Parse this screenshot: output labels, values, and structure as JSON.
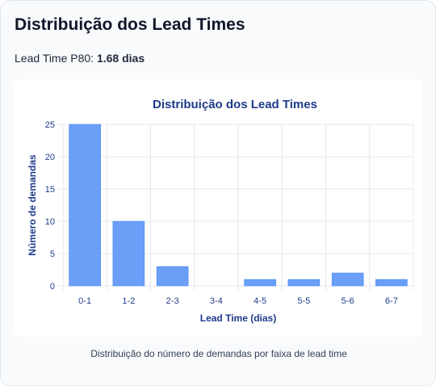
{
  "header": {
    "title": "Distribuição dos Lead Times",
    "metric_label": "Lead Time P80:",
    "metric_value": "1.68 dias"
  },
  "chart_data": {
    "type": "bar",
    "title": "Distribuição dos Lead Times",
    "xlabel": "Lead Time (dias)",
    "ylabel": "Número de demandas",
    "categories": [
      "0-1",
      "1-2",
      "2-3",
      "3-4",
      "4-5",
      "5-5",
      "5-6",
      "6-7"
    ],
    "values": [
      25,
      10,
      3,
      0,
      1,
      1,
      2,
      1
    ],
    "ylim": [
      0,
      25
    ],
    "yticks": [
      0,
      5,
      10,
      15,
      20,
      25
    ],
    "grid": true,
    "legend": "none",
    "colors": {
      "bar_fill": "#6a9ef7",
      "bar_stroke": "#3b82f6",
      "text": "#1e3a8a",
      "grid": "#e5e7eb"
    }
  },
  "caption": "Distribuição do número de demandas por faixa de lead time"
}
